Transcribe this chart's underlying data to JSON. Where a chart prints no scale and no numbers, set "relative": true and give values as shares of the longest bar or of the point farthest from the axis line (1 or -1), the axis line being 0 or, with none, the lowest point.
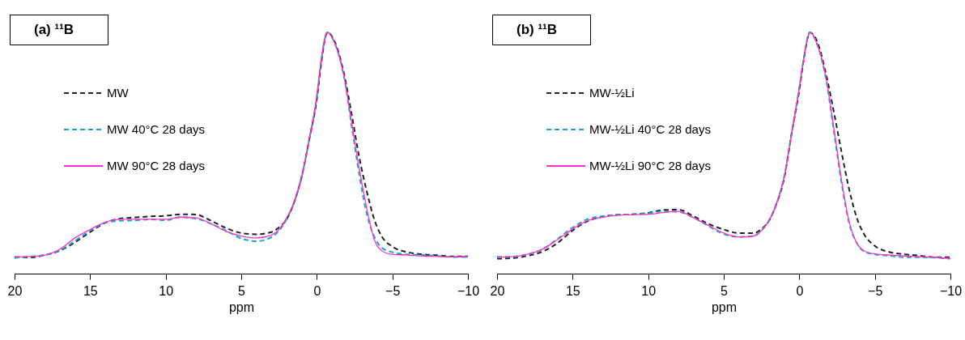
{
  "chart_data": [
    {
      "type": "line",
      "title": "(a) ¹¹B",
      "xlabel": "ppm",
      "relative": true,
      "legend": "top left",
      "xlim": [
        20,
        -10
      ],
      "xticks": [
        20,
        15,
        10,
        5,
        0,
        -5,
        -10
      ],
      "x": [
        20,
        19,
        18,
        17,
        16,
        15,
        14,
        13,
        12,
        11,
        10,
        9,
        8,
        7,
        6,
        5,
        4,
        3,
        2.5,
        2,
        1.5,
        1,
        0.5,
        0,
        -0.3,
        -0.7,
        -1.2,
        -1.8,
        -2.3,
        -2.8,
        -3.3,
        -3.8,
        -4.3,
        -5,
        -6,
        -7,
        -8,
        -9,
        -10
      ],
      "series": [
        {
          "name": "MW",
          "color": "#222222",
          "line_style": "dashed",
          "values": [
            0.069,
            0.067,
            0.077,
            0.095,
            0.13,
            0.172,
            0.211,
            0.228,
            0.233,
            0.237,
            0.24,
            0.246,
            0.245,
            0.219,
            0.189,
            0.168,
            0.163,
            0.172,
            0.192,
            0.225,
            0.296,
            0.402,
            0.556,
            0.722,
            0.876,
            1,
            0.959,
            0.828,
            0.663,
            0.485,
            0.343,
            0.225,
            0.154,
            0.112,
            0.089,
            0.08,
            0.076,
            0.071,
            0.071
          ]
        },
        {
          "name": "MW 40°C 28 days",
          "color": "#17a9c2",
          "line_style": "dashed",
          "values": [
            0.065,
            0.071,
            0.077,
            0.097,
            0.136,
            0.178,
            0.211,
            0.219,
            0.221,
            0.225,
            0.221,
            0.234,
            0.228,
            0.207,
            0.178,
            0.146,
            0.134,
            0.151,
            0.178,
            0.225,
            0.296,
            0.402,
            0.556,
            0.734,
            0.888,
            1,
            0.953,
            0.817,
            0.615,
            0.414,
            0.249,
            0.154,
            0.107,
            0.089,
            0.08,
            0.077,
            0.073,
            0.069,
            0.069
          ]
        },
        {
          "name": "MW 90°C 28 days",
          "color": "#ff33cc",
          "line_style": "solid",
          "values": [
            0.069,
            0.071,
            0.077,
            0.101,
            0.148,
            0.183,
            0.213,
            0.225,
            0.225,
            0.225,
            0.225,
            0.234,
            0.231,
            0.207,
            0.175,
            0.156,
            0.148,
            0.16,
            0.183,
            0.231,
            0.296,
            0.402,
            0.556,
            0.734,
            0.888,
            1,
            0.953,
            0.817,
            0.627,
            0.438,
            0.272,
            0.142,
            0.095,
            0.08,
            0.077,
            0.073,
            0.071,
            0.069,
            0.073
          ]
        }
      ]
    },
    {
      "type": "line",
      "title": "(b) ¹¹B",
      "xlabel": "ppm",
      "relative": true,
      "legend": "top left",
      "xlim": [
        20,
        -10
      ],
      "xticks": [
        20,
        15,
        10,
        5,
        0,
        -5,
        -10
      ],
      "x": [
        20,
        19,
        18,
        17,
        16,
        15,
        14,
        13,
        12,
        11,
        10,
        9,
        8,
        7,
        6,
        5,
        4,
        3,
        2.5,
        2,
        1.5,
        1,
        0.5,
        0,
        -0.3,
        -0.7,
        -1.2,
        -1.8,
        -2.3,
        -2.8,
        -3.3,
        -3.8,
        -4.3,
        -5,
        -6,
        -7,
        -8,
        -9,
        -10
      ],
      "series": [
        {
          "name": "MW-½Li",
          "color": "#222222",
          "line_style": "dashed",
          "values": [
            0.062,
            0.064,
            0.074,
            0.091,
            0.127,
            0.179,
            0.218,
            0.236,
            0.244,
            0.246,
            0.252,
            0.264,
            0.265,
            0.238,
            0.206,
            0.183,
            0.168,
            0.168,
            0.185,
            0.22,
            0.291,
            0.396,
            0.584,
            0.76,
            0.889,
            1,
            0.959,
            0.818,
            0.666,
            0.502,
            0.349,
            0.232,
            0.162,
            0.115,
            0.089,
            0.08,
            0.074,
            0.068,
            0.068
          ]
        },
        {
          "name": "MW-½Li 40°C 28 days",
          "color": "#17a9c2",
          "line_style": "dashed",
          "values": [
            0.07,
            0.07,
            0.08,
            0.101,
            0.144,
            0.191,
            0.226,
            0.238,
            0.244,
            0.246,
            0.25,
            0.258,
            0.256,
            0.232,
            0.197,
            0.164,
            0.152,
            0.156,
            0.179,
            0.22,
            0.291,
            0.402,
            0.584,
            0.771,
            0.894,
            1,
            0.947,
            0.795,
            0.584,
            0.373,
            0.209,
            0.127,
            0.091,
            0.08,
            0.074,
            0.068,
            0.068,
            0.066,
            0.062
          ]
        },
        {
          "name": "MW-½Li 90°C 28 days",
          "color": "#ff33cc",
          "line_style": "solid",
          "values": [
            0.068,
            0.07,
            0.08,
            0.101,
            0.141,
            0.185,
            0.22,
            0.234,
            0.242,
            0.244,
            0.246,
            0.253,
            0.258,
            0.232,
            0.199,
            0.168,
            0.152,
            0.156,
            0.179,
            0.22,
            0.291,
            0.402,
            0.584,
            0.771,
            0.894,
            1,
            0.947,
            0.801,
            0.596,
            0.385,
            0.215,
            0.127,
            0.094,
            0.082,
            0.077,
            0.073,
            0.07,
            0.068,
            0.062
          ]
        }
      ]
    }
  ]
}
